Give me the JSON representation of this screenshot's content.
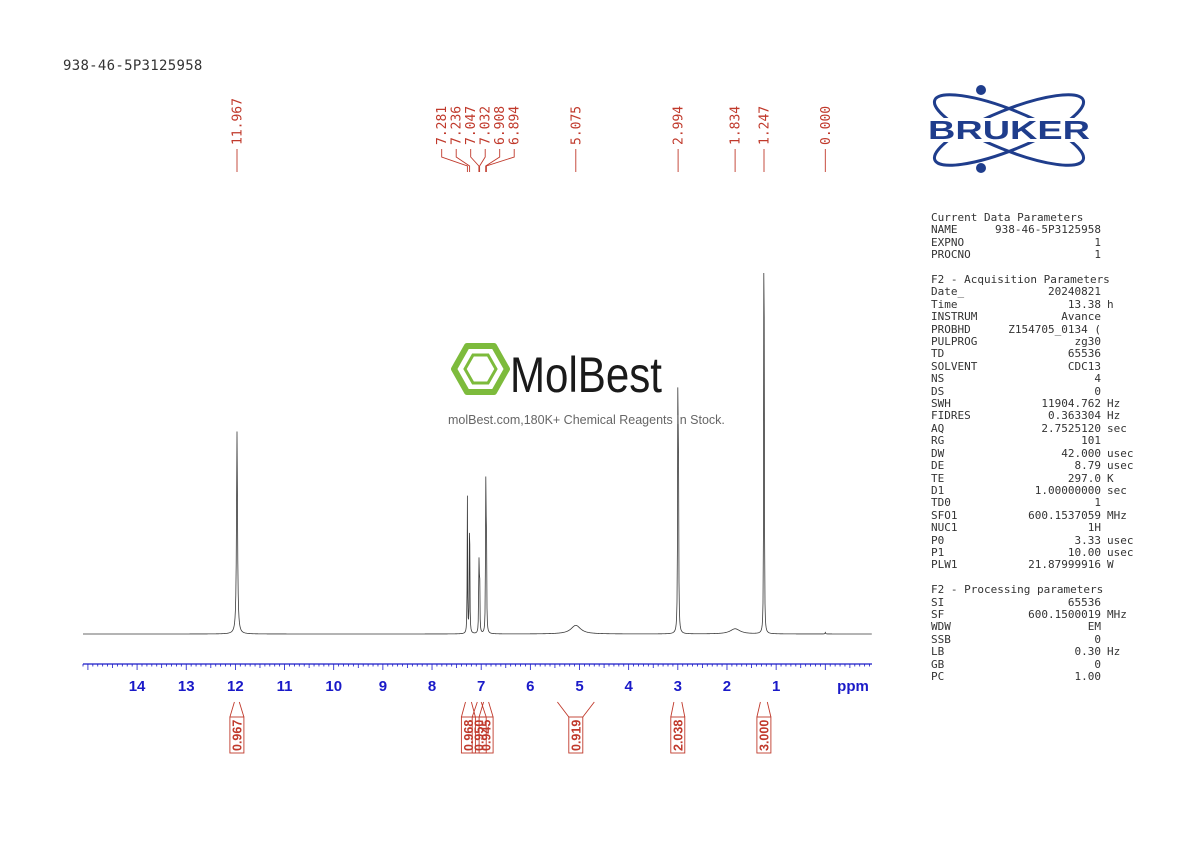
{
  "header": {
    "sample_name": "938-46-5P3125958"
  },
  "brand": {
    "name": "BRUKER",
    "color": "#1f3d8c"
  },
  "watermark": {
    "name": "MolBest",
    "tagline": "molBest.com,180K+ Chemical Reagents In Stock.",
    "icon": "benzene-ring-icon",
    "color": "#7dbb3c"
  },
  "chart_data": {
    "type": "line",
    "title": "938-46-5P3125958",
    "xlabel": "ppm",
    "xlim": [
      15.1,
      -0.95
    ],
    "reversed_x": true,
    "x_ticks": [
      14,
      13,
      12,
      11,
      10,
      9,
      8,
      7,
      6,
      5,
      4,
      3,
      2,
      1
    ],
    "x_tick_label_color": "#1a1ac8",
    "peak_label_color": "#c0392b",
    "integral_color": "#c0392b",
    "peak_labels": [
      "11.967",
      "7.281",
      "7.236",
      "7.047",
      "7.032",
      "6.908",
      "6.894",
      "5.075",
      "2.994",
      "1.834",
      "1.247",
      "0.000"
    ],
    "peak_positions": [
      11.967,
      7.281,
      7.236,
      7.047,
      7.032,
      6.908,
      6.894,
      5.075,
      2.994,
      1.834,
      1.247,
      0.0
    ],
    "spectrum_peaks": [
      {
        "ppm": 11.967,
        "height": 0.47,
        "width": 0.012
      },
      {
        "ppm": 7.281,
        "height": 0.32,
        "width": 0.005
      },
      {
        "ppm": 7.236,
        "height": 0.36,
        "width": 0.005
      },
      {
        "ppm": 7.047,
        "height": 0.19,
        "width": 0.005
      },
      {
        "ppm": 7.032,
        "height": 0.18,
        "width": 0.005
      },
      {
        "ppm": 6.908,
        "height": 0.36,
        "width": 0.005
      },
      {
        "ppm": 6.894,
        "height": 0.33,
        "width": 0.005
      },
      {
        "ppm": 5.075,
        "height": 0.02,
        "width": 0.12
      },
      {
        "ppm": 3.0,
        "height": 0.49,
        "width": 0.006
      },
      {
        "ppm": 2.988,
        "height": 0.45,
        "width": 0.006
      },
      {
        "ppm": 1.834,
        "height": 0.012,
        "width": 0.12
      },
      {
        "ppm": 1.253,
        "height": 0.38,
        "width": 0.004
      },
      {
        "ppm": 1.247,
        "height": 1.0,
        "width": 0.004
      },
      {
        "ppm": 1.24,
        "height": 0.3,
        "width": 0.004
      },
      {
        "ppm": 0.0,
        "height": 0.004,
        "width": 0.006
      }
    ],
    "integrals": [
      {
        "value": "0.967",
        "from": 12.02,
        "to": 11.92
      },
      {
        "value": "0.968",
        "from": 7.32,
        "to": 7.2
      },
      {
        "value": "0.950",
        "from": 7.08,
        "to": 7.0
      },
      {
        "value": "0.945",
        "from": 6.95,
        "to": 6.85
      },
      {
        "value": "0.919",
        "from": 5.45,
        "to": 4.7
      },
      {
        "value": "2.038",
        "from": 3.08,
        "to": 2.92
      },
      {
        "value": "3.000",
        "from": 1.32,
        "to": 1.18
      }
    ]
  },
  "parameters": {
    "current": {
      "title": "Current Data Parameters",
      "rows": [
        {
          "key": "NAME",
          "value": "938-46-5P3125958",
          "unit": ""
        },
        {
          "key": "EXPNO",
          "value": "1",
          "unit": ""
        },
        {
          "key": "PROCNO",
          "value": "1",
          "unit": ""
        }
      ]
    },
    "acquisition": {
      "title": "F2 - Acquisition Parameters",
      "rows": [
        {
          "key": "Date_",
          "value": "20240821",
          "unit": ""
        },
        {
          "key": "Time",
          "value": "13.38",
          "unit": "h"
        },
        {
          "key": "INSTRUM",
          "value": "Avance",
          "unit": ""
        },
        {
          "key": "PROBHD",
          "value": "Z154705_0134 (",
          "unit": ""
        },
        {
          "key": "PULPROG",
          "value": "zg30",
          "unit": ""
        },
        {
          "key": "TD",
          "value": "65536",
          "unit": ""
        },
        {
          "key": "SOLVENT",
          "value": "CDC13",
          "unit": ""
        },
        {
          "key": "NS",
          "value": "4",
          "unit": ""
        },
        {
          "key": "DS",
          "value": "0",
          "unit": ""
        },
        {
          "key": "SWH",
          "value": "11904.762",
          "unit": "Hz"
        },
        {
          "key": "FIDRES",
          "value": "0.363304",
          "unit": "Hz"
        },
        {
          "key": "AQ",
          "value": "2.7525120",
          "unit": "sec"
        },
        {
          "key": "RG",
          "value": "101",
          "unit": ""
        },
        {
          "key": "DW",
          "value": "42.000",
          "unit": "usec"
        },
        {
          "key": "DE",
          "value": "8.79",
          "unit": "usec"
        },
        {
          "key": "TE",
          "value": "297.0",
          "unit": "K"
        },
        {
          "key": "D1",
          "value": "1.00000000",
          "unit": "sec"
        },
        {
          "key": "TD0",
          "value": "1",
          "unit": ""
        },
        {
          "key": "SFO1",
          "value": "600.1537059",
          "unit": "MHz"
        },
        {
          "key": "NUC1",
          "value": "1H",
          "unit": ""
        },
        {
          "key": "P0",
          "value": "3.33",
          "unit": "usec"
        },
        {
          "key": "P1",
          "value": "10.00",
          "unit": "usec"
        },
        {
          "key": "PLW1",
          "value": "21.87999916",
          "unit": "W"
        }
      ]
    },
    "processing": {
      "title": "F2 - Processing parameters",
      "rows": [
        {
          "key": "SI",
          "value": "65536",
          "unit": ""
        },
        {
          "key": "SF",
          "value": "600.1500019",
          "unit": "MHz"
        },
        {
          "key": "WDW",
          "value": "EM",
          "unit": ""
        },
        {
          "key": "SSB",
          "value": "0",
          "unit": ""
        },
        {
          "key": "LB",
          "value": "0.30",
          "unit": "Hz"
        },
        {
          "key": "GB",
          "value": "0",
          "unit": ""
        },
        {
          "key": "PC",
          "value": "1.00",
          "unit": ""
        }
      ]
    }
  }
}
